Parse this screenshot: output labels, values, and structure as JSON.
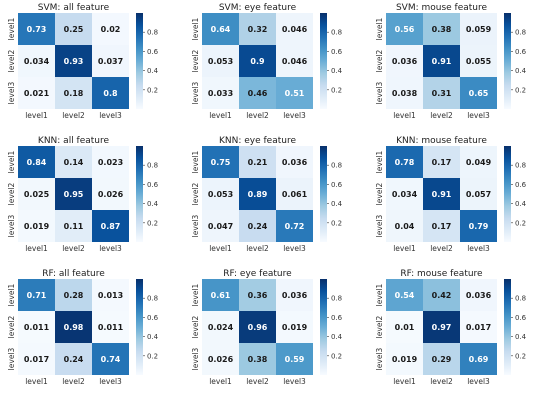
{
  "chart_data": [
    {
      "type": "heatmap",
      "title": "SVM: all feature",
      "xlabels": [
        "level1",
        "level2",
        "level3"
      ],
      "ylabels": [
        "level1",
        "level2",
        "level3"
      ],
      "values": [
        [
          0.73,
          0.25,
          0.02
        ],
        [
          0.034,
          0.93,
          0.037
        ],
        [
          0.021,
          0.18,
          0.8
        ]
      ],
      "colorbar_ticks": [
        "0.8",
        "0.6",
        "0.4",
        "0.2"
      ]
    },
    {
      "type": "heatmap",
      "title": "SVM: eye feature",
      "xlabels": [
        "level1",
        "level2",
        "level3"
      ],
      "ylabels": [
        "level1",
        "level2",
        "level3"
      ],
      "values": [
        [
          0.64,
          0.32,
          0.046
        ],
        [
          0.053,
          0.9,
          0.046
        ],
        [
          0.033,
          0.46,
          0.51
        ]
      ],
      "colorbar_ticks": [
        "0.8",
        "0.6",
        "0.4",
        "0.2"
      ]
    },
    {
      "type": "heatmap",
      "title": "SVM: mouse feature",
      "xlabels": [
        "level1",
        "level2",
        "level3"
      ],
      "ylabels": [
        "level1",
        "level2",
        "level3"
      ],
      "values": [
        [
          0.56,
          0.38,
          0.059
        ],
        [
          0.036,
          0.91,
          0.055
        ],
        [
          0.038,
          0.31,
          0.65
        ]
      ],
      "colorbar_ticks": [
        "0.8",
        "0.6",
        "0.4",
        "0.2"
      ]
    },
    {
      "type": "heatmap",
      "title": "KNN: all feature",
      "xlabels": [
        "level1",
        "level2",
        "level3"
      ],
      "ylabels": [
        "level1",
        "level2",
        "level3"
      ],
      "values": [
        [
          0.84,
          0.14,
          0.023
        ],
        [
          0.025,
          0.95,
          0.026
        ],
        [
          0.019,
          0.11,
          0.87
        ]
      ],
      "colorbar_ticks": [
        "0.8",
        "0.6",
        "0.4",
        "0.2"
      ]
    },
    {
      "type": "heatmap",
      "title": "KNN: eye feature",
      "xlabels": [
        "level1",
        "level2",
        "level3"
      ],
      "ylabels": [
        "level1",
        "level2",
        "level3"
      ],
      "values": [
        [
          0.75,
          0.21,
          0.036
        ],
        [
          0.053,
          0.89,
          0.061
        ],
        [
          0.047,
          0.24,
          0.72
        ]
      ],
      "colorbar_ticks": [
        "0.8",
        "0.6",
        "0.4",
        "0.2"
      ]
    },
    {
      "type": "heatmap",
      "title": "KNN: mouse feature",
      "xlabels": [
        "level1",
        "level2",
        "level3"
      ],
      "ylabels": [
        "level1",
        "level2",
        "level3"
      ],
      "values": [
        [
          0.78,
          0.17,
          0.049
        ],
        [
          0.034,
          0.91,
          0.057
        ],
        [
          0.04,
          0.17,
          0.79
        ]
      ],
      "colorbar_ticks": [
        "0.8",
        "0.6",
        "0.4",
        "0.2"
      ]
    },
    {
      "type": "heatmap",
      "title": "RF: all feature",
      "xlabels": [
        "level1",
        "level2",
        "level3"
      ],
      "ylabels": [
        "level1",
        "level2",
        "level3"
      ],
      "values": [
        [
          0.71,
          0.28,
          0.013
        ],
        [
          0.011,
          0.98,
          0.011
        ],
        [
          0.017,
          0.24,
          0.74
        ]
      ],
      "colorbar_ticks": [
        "0.8",
        "0.6",
        "0.4",
        "0.2"
      ]
    },
    {
      "type": "heatmap",
      "title": "RF: eye feature",
      "xlabels": [
        "level1",
        "level2",
        "level3"
      ],
      "ylabels": [
        "level1",
        "level2",
        "level3"
      ],
      "values": [
        [
          0.61,
          0.36,
          0.036
        ],
        [
          0.024,
          0.96,
          0.019
        ],
        [
          0.026,
          0.38,
          0.59
        ]
      ],
      "colorbar_ticks": [
        "0.8",
        "0.6",
        "0.4",
        "0.2"
      ]
    },
    {
      "type": "heatmap",
      "title": "RF: mouse feature",
      "xlabels": [
        "level1",
        "level2",
        "level3"
      ],
      "ylabels": [
        "level1",
        "level2",
        "level3"
      ],
      "values": [
        [
          0.54,
          0.42,
          0.036
        ],
        [
          0.01,
          0.97,
          0.017
        ],
        [
          0.019,
          0.29,
          0.69
        ]
      ],
      "colorbar_ticks": [
        "0.8",
        "0.6",
        "0.4",
        "0.2"
      ]
    }
  ],
  "colorscale": {
    "name": "Blues",
    "min": 0.0,
    "max": 1.0
  }
}
